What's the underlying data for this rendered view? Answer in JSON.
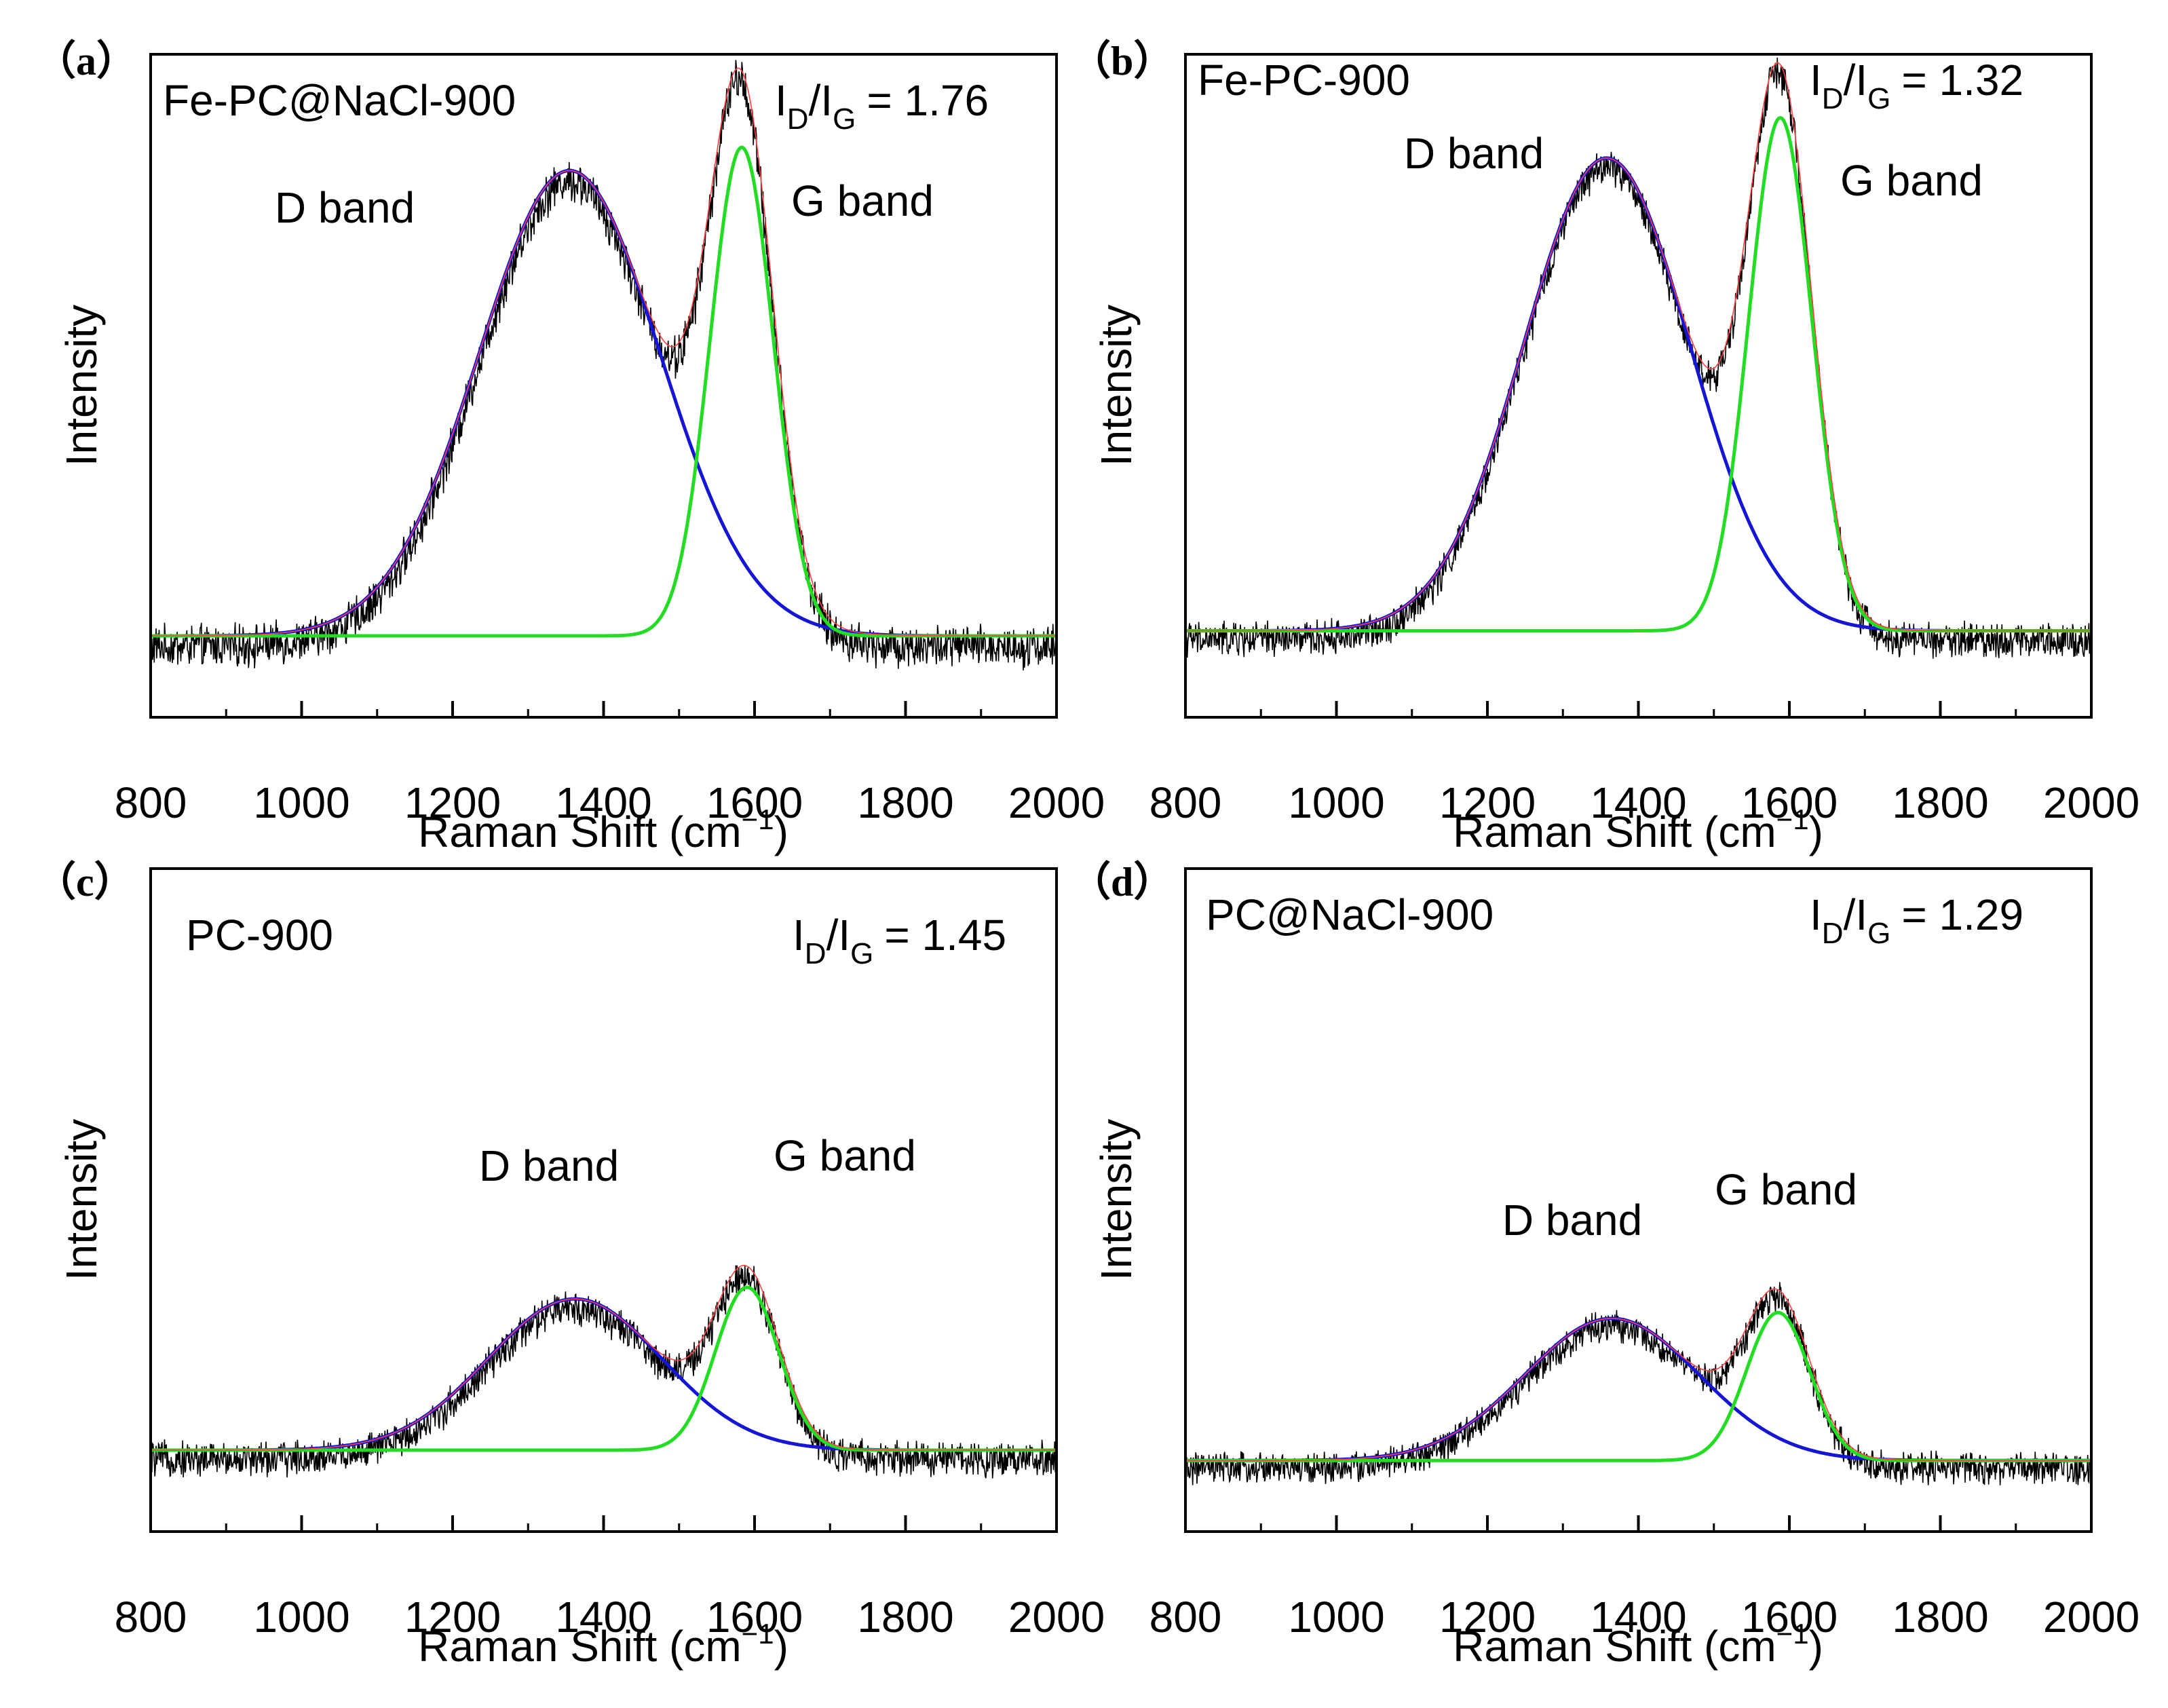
{
  "figure": {
    "panels": [
      {
        "id": "a",
        "label": "（a）",
        "sample": "Fe-PC@NaCl-900",
        "ratio_main": "I",
        "ratio_sub_d": "D",
        "ratio_sep": "/I",
        "ratio_sub_g": "G",
        "ratio_value": "= 1.76",
        "d_label": "D band",
        "g_label": "G band",
        "ylabel": "Intensity",
        "xlabel_main": "Raman Shift (cm",
        "xlabel_sup": "−1",
        "xlabel_end": ")",
        "xticks": [
          "800",
          "1000",
          "1200",
          "1400",
          "1600",
          "1800",
          "2000"
        ]
      },
      {
        "id": "b",
        "label": "（b）",
        "sample": "Fe-PC-900",
        "ratio_main": "I",
        "ratio_sub_d": "D",
        "ratio_sep": "/I",
        "ratio_sub_g": "G",
        "ratio_value": "= 1.32",
        "d_label": "D band",
        "g_label": "G band",
        "ylabel": "Intensity",
        "xlabel_main": "Raman Shift (cm",
        "xlabel_sup": "−1",
        "xlabel_end": ")",
        "xticks": [
          "800",
          "1000",
          "1200",
          "1400",
          "1600",
          "1800",
          "2000"
        ]
      },
      {
        "id": "c",
        "label": "（c）",
        "sample": "PC-900",
        "ratio_main": "I",
        "ratio_sub_d": "D",
        "ratio_sep": "/I",
        "ratio_sub_g": "G",
        "ratio_value": "= 1.45",
        "d_label": "D band",
        "g_label": "G band",
        "ylabel": "Intensity",
        "xlabel_main": "Raman Shift (cm",
        "xlabel_sup": "−1",
        "xlabel_end": ")",
        "xticks": [
          "800",
          "1000",
          "1200",
          "1400",
          "1600",
          "1800",
          "2000"
        ]
      },
      {
        "id": "d",
        "label": "（d）",
        "sample": "PC@NaCl-900",
        "ratio_main": "I",
        "ratio_sub_d": "D",
        "ratio_sep": "/I",
        "ratio_sub_g": "G",
        "ratio_value": "= 1.29",
        "d_label": "D band",
        "g_label": "G band",
        "ylabel": "Intensity",
        "xlabel_main": "Raman Shift (cm",
        "xlabel_sup": "−1",
        "xlabel_end": ")",
        "xticks": [
          "800",
          "1000",
          "1200",
          "1400",
          "1600",
          "1800",
          "2000"
        ]
      }
    ]
  },
  "chart_data": [
    {
      "type": "line",
      "title": "Fe-PC@NaCl-900",
      "xlabel": "Raman Shift (cm−1)",
      "ylabel": "Intensity",
      "xlim": [
        800,
        2000
      ],
      "ylim": [
        -0.14,
        1.0
      ],
      "ratio_ID_IG": 1.76,
      "baseline": 0.0,
      "d_band": {
        "center": 1355,
        "height": 0.8,
        "sigma": 120
      },
      "g_band": {
        "center": 1583,
        "height": 0.84,
        "sigma": 42
      },
      "noise": 0.03,
      "series": [
        {
          "name": "Raw spectrum",
          "color": "#000000"
        },
        {
          "name": "Cumulative fit",
          "color": "#ff4040"
        },
        {
          "name": "D band fit",
          "color": "#1515d5"
        },
        {
          "name": "G band fit",
          "color": "#22dd22"
        }
      ]
    },
    {
      "type": "line",
      "title": "Fe-PC-900",
      "xlabel": "Raman Shift (cm−1)",
      "ylabel": "Intensity",
      "xlim": [
        800,
        2000
      ],
      "ylim": [
        -0.15,
        1.0
      ],
      "ratio_ID_IG": 1.32,
      "baseline": 0.0,
      "d_band": {
        "center": 1358,
        "height": 0.82,
        "sigma": 110
      },
      "g_band": {
        "center": 1588,
        "height": 0.89,
        "sigma": 42
      },
      "noise": 0.025,
      "series": [
        {
          "name": "Raw spectrum",
          "color": "#000000"
        },
        {
          "name": "Cumulative fit",
          "color": "#ff4040"
        },
        {
          "name": "D band fit",
          "color": "#1515d5"
        },
        {
          "name": "G band fit",
          "color": "#22dd22"
        }
      ]
    },
    {
      "type": "line",
      "title": "PC-900",
      "xlabel": "Raman Shift (cm−1)",
      "ylabel": "Intensity",
      "xlim": [
        800,
        2000
      ],
      "ylim": [
        -0.14,
        1.0
      ],
      "ratio_ID_IG": 1.45,
      "baseline": 0.0,
      "d_band": {
        "center": 1362,
        "height": 0.26,
        "sigma": 115
      },
      "g_band": {
        "center": 1590,
        "height": 0.28,
        "sigma": 42
      },
      "noise": 0.025,
      "series": [
        {
          "name": "Raw spectrum",
          "color": "#000000"
        },
        {
          "name": "Cumulative fit",
          "color": "#ff4040"
        },
        {
          "name": "D band fit",
          "color": "#1515d5"
        },
        {
          "name": "G band fit",
          "color": "#22dd22"
        }
      ]
    },
    {
      "type": "line",
      "title": "PC@NaCl-900",
      "xlabel": "Raman Shift (cm−1)",
      "ylabel": "Intensity",
      "xlim": [
        800,
        2000
      ],
      "ylim": [
        -0.12,
        1.0
      ],
      "ratio_ID_IG": 1.29,
      "baseline": 0.0,
      "d_band": {
        "center": 1365,
        "height": 0.24,
        "sigma": 115
      },
      "g_band": {
        "center": 1585,
        "height": 0.25,
        "sigma": 42
      },
      "noise": 0.022,
      "series": [
        {
          "name": "Raw spectrum",
          "color": "#000000"
        },
        {
          "name": "Cumulative fit",
          "color": "#ff4040"
        },
        {
          "name": "D band fit",
          "color": "#1515d5"
        },
        {
          "name": "G band fit",
          "color": "#22dd22"
        }
      ]
    }
  ]
}
